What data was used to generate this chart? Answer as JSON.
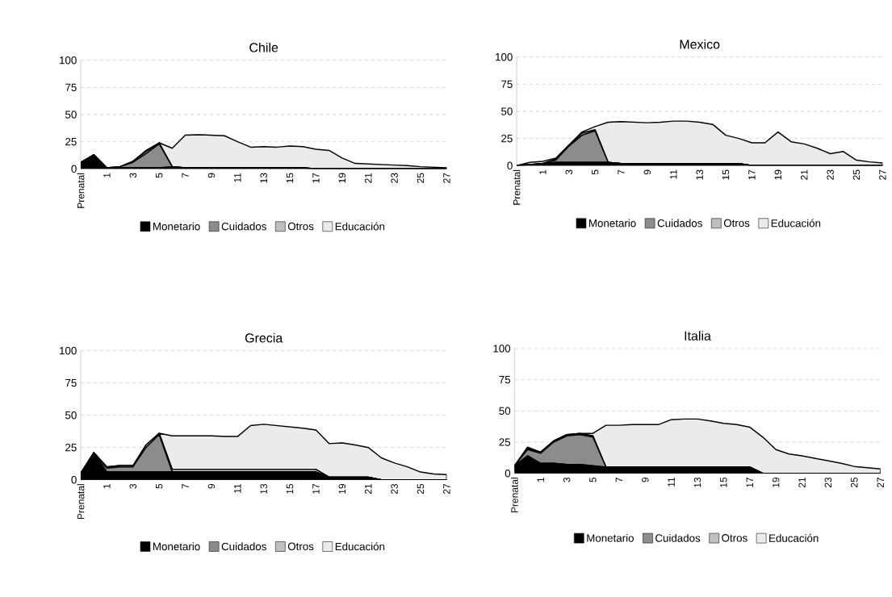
{
  "chart_data": [
    {
      "type": "area",
      "title": "Chile",
      "stacked": true,
      "categories": [
        "Prenatal",
        null,
        "1",
        null,
        "3",
        null,
        "5",
        null,
        "7",
        null,
        "9",
        null,
        "11",
        null,
        "13",
        null,
        "15",
        null,
        "17",
        null,
        "19",
        null,
        "21",
        null,
        "23",
        null,
        "25",
        null,
        "27"
      ],
      "series": [
        {
          "name": "Monetario",
          "color": "#000000",
          "values": [
            6,
            13,
            1,
            1,
            1,
            1,
            1,
            2,
            1,
            1,
            1,
            1,
            1,
            1,
            1,
            1,
            1,
            1,
            0,
            0,
            0,
            0,
            0,
            0,
            0,
            0,
            0,
            0,
            0
          ]
        },
        {
          "name": "Cuidados",
          "color": "#8c8c8c",
          "values": [
            0,
            0,
            0,
            1,
            5,
            13,
            22,
            0,
            0,
            0,
            0,
            0,
            0,
            0,
            0,
            0,
            0,
            0,
            0,
            0,
            0,
            0,
            0,
            0,
            0,
            0,
            0,
            0,
            0
          ]
        },
        {
          "name": "Otros",
          "color": "#bfbfbf",
          "values": [
            0,
            0,
            0,
            0,
            1,
            2,
            1,
            0,
            0,
            0,
            0,
            0,
            0,
            0,
            0,
            0,
            0,
            0,
            0,
            0,
            0,
            0,
            0,
            0,
            0,
            0,
            0,
            0,
            0
          ]
        },
        {
          "name": "Educación",
          "color": "#ebebeb",
          "values": [
            0,
            0,
            0,
            0,
            0,
            1,
            0,
            17,
            30,
            30.5,
            30,
            29.5,
            24,
            19,
            19.5,
            19,
            20,
            19.5,
            18,
            17,
            10,
            5,
            4.5,
            4,
            3.5,
            3,
            2,
            1.5,
            1
          ]
        }
      ],
      "ylim": [
        0,
        100
      ],
      "yticks": [
        0,
        25,
        50,
        75,
        100
      ],
      "grid": "y",
      "legend": "bottom"
    },
    {
      "type": "area",
      "title": "Mexico",
      "stacked": true,
      "categories": [
        "Prenatal",
        null,
        "1",
        null,
        "3",
        null,
        "5",
        null,
        "7",
        null,
        "9",
        null,
        "11",
        null,
        "13",
        null,
        "15",
        null,
        "17",
        null,
        "19",
        null,
        "21",
        null,
        "23",
        null,
        "25",
        null,
        "27"
      ],
      "series": [
        {
          "name": "Monetario",
          "color": "#000000",
          "values": [
            0,
            1,
            2,
            3,
            3,
            3,
            3,
            3,
            2,
            2,
            2,
            2,
            2,
            2,
            2,
            2,
            2,
            2,
            0,
            0,
            0,
            0,
            0,
            0,
            0,
            0,
            0,
            0,
            0
          ]
        },
        {
          "name": "Cuidados",
          "color": "#8c8c8c",
          "values": [
            0,
            0,
            0,
            2,
            15,
            25,
            29,
            0,
            0,
            0,
            0,
            0,
            0,
            0,
            0,
            0,
            0,
            0,
            0,
            0,
            0,
            0,
            0,
            0,
            0,
            0,
            0,
            0,
            0
          ]
        },
        {
          "name": "Otros",
          "color": "#bfbfbf",
          "values": [
            0,
            0,
            0,
            1,
            1,
            2,
            1,
            0,
            0,
            0,
            0,
            0,
            0,
            0,
            0,
            0,
            0,
            0,
            0,
            0,
            0,
            0,
            0,
            0,
            0,
            0,
            0,
            0,
            0
          ]
        },
        {
          "name": "Educación",
          "color": "#ebebeb",
          "values": [
            0,
            2,
            2,
            1,
            0,
            1,
            3,
            37,
            38.5,
            38,
            37.5,
            38,
            39,
            39,
            38,
            36,
            26,
            23,
            21,
            21,
            31,
            22,
            20,
            16,
            11,
            13,
            5,
            3.5,
            2.5
          ]
        }
      ],
      "ylim": [
        0,
        100
      ],
      "yticks": [
        0,
        25,
        50,
        75,
        100
      ],
      "grid": "y",
      "legend": "bottom"
    },
    {
      "type": "area",
      "title": "Grecia",
      "stacked": true,
      "categories": [
        "Prenatal",
        null,
        "1",
        null,
        "3",
        null,
        "5",
        null,
        "7",
        null,
        "9",
        null,
        "11",
        null,
        "13",
        null,
        "15",
        null,
        "17",
        null,
        "19",
        null,
        "21",
        null,
        "23",
        null,
        "25",
        null,
        "27"
      ],
      "series": [
        {
          "name": "Monetario",
          "color": "#000000",
          "values": [
            5,
            21,
            6,
            6,
            6,
            6,
            6,
            6,
            6,
            6,
            6,
            6,
            6,
            6,
            6,
            6,
            6,
            6,
            6,
            2,
            2,
            2,
            2,
            0,
            0,
            0,
            0,
            0,
            0
          ]
        },
        {
          "name": "Cuidados",
          "color": "#8c8c8c",
          "values": [
            0,
            0,
            3,
            4,
            4,
            19,
            29,
            0,
            0,
            0,
            0,
            0,
            0,
            0,
            0,
            0,
            0,
            0,
            0,
            0,
            0,
            0,
            0,
            0,
            0,
            0,
            0,
            0,
            0
          ]
        },
        {
          "name": "Otros",
          "color": "#bfbfbf",
          "values": [
            0,
            0,
            1,
            1,
            1,
            2,
            1,
            2,
            2,
            2,
            2,
            2,
            2,
            2,
            2,
            2,
            2,
            2,
            2,
            0,
            0,
            0,
            0,
            0,
            0,
            0,
            0,
            0,
            0
          ]
        },
        {
          "name": "Educación",
          "color": "#ebebeb",
          "values": [
            0,
            0,
            0,
            0,
            0,
            0,
            0,
            26,
            26,
            26,
            26,
            25.5,
            25.5,
            34,
            35,
            34,
            33,
            32,
            30.5,
            26,
            26.5,
            25,
            23,
            17,
            13,
            10,
            6,
            4.5,
            4
          ]
        }
      ],
      "ylim": [
        0,
        100
      ],
      "yticks": [
        0,
        25,
        50,
        75,
        100
      ],
      "grid": "y",
      "legend": "bottom"
    },
    {
      "type": "area",
      "title": "Italia",
      "stacked": true,
      "categories": [
        "Prenatal",
        null,
        "1",
        null,
        "3",
        null,
        "5",
        null,
        "7",
        null,
        "9",
        null,
        "11",
        null,
        "13",
        null,
        "15",
        null,
        "17",
        null,
        "19",
        null,
        "21",
        null,
        "23",
        null,
        "25",
        null,
        "27"
      ],
      "series": [
        {
          "name": "Monetario",
          "color": "#000000",
          "values": [
            6,
            14,
            8,
            8,
            7,
            7,
            6,
            5,
            5,
            5,
            5,
            5,
            5,
            5,
            5,
            5,
            5,
            5,
            5,
            0,
            0,
            0,
            0,
            0,
            0,
            0,
            0,
            0,
            0
          ]
        },
        {
          "name": "Cuidados",
          "color": "#8c8c8c",
          "values": [
            0,
            5,
            8,
            17,
            23,
            24,
            23,
            0,
            0,
            0,
            0,
            0,
            0,
            0,
            0,
            0,
            0,
            0,
            0,
            0,
            0,
            0,
            0,
            0,
            0,
            0,
            0,
            0,
            0
          ]
        },
        {
          "name": "Otros",
          "color": "#bfbfbf",
          "values": [
            0,
            1,
            1,
            1,
            1,
            1,
            1,
            0,
            0,
            0,
            0,
            0,
            0,
            0,
            0,
            0,
            0,
            0,
            0,
            0,
            0,
            0,
            0,
            0,
            0,
            0,
            0,
            0,
            0
          ]
        },
        {
          "name": "Educación",
          "color": "#ebebeb",
          "values": [
            0,
            1,
            0,
            0,
            0,
            0,
            2,
            33.5,
            33.5,
            34,
            34,
            34,
            38,
            38.5,
            38.5,
            37,
            35,
            34,
            32,
            29,
            19,
            15.5,
            14,
            12,
            10,
            8,
            5.5,
            4.5,
            3.5
          ]
        }
      ],
      "ylim": [
        0,
        100
      ],
      "yticks": [
        0,
        25,
        50,
        75,
        100
      ],
      "grid": "y",
      "legend": "bottom"
    }
  ]
}
